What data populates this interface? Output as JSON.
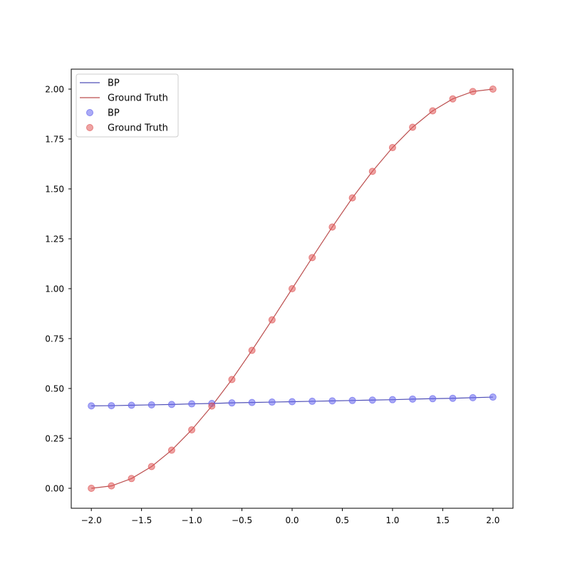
{
  "chart_data": {
    "type": "line",
    "title": "",
    "xlabel": "",
    "ylabel": "",
    "xlim": [
      -2.2,
      2.2
    ],
    "ylim": [
      -0.1,
      2.1
    ],
    "grid": false,
    "legend_position": "top-left",
    "x": [
      -2.0,
      -1.8,
      -1.6,
      -1.4,
      -1.2,
      -1.0,
      -0.8,
      -0.6,
      -0.4,
      -0.2,
      0.0,
      0.2,
      0.4,
      0.6,
      0.8,
      1.0,
      1.2,
      1.4,
      1.6,
      1.8,
      2.0
    ],
    "series": [
      {
        "name": "BP",
        "kind": "line+scatter",
        "line_color": "#3333aa",
        "marker_color": "#6666ee",
        "values": [
          0.413,
          0.414,
          0.416,
          0.418,
          0.42,
          0.423,
          0.425,
          0.428,
          0.43,
          0.432,
          0.434,
          0.436,
          0.438,
          0.44,
          0.442,
          0.444,
          0.447,
          0.449,
          0.451,
          0.454,
          0.457
        ]
      },
      {
        "name": "Ground Truth",
        "kind": "line+scatter",
        "line_color": "#b03030",
        "marker_color": "#e05a5a",
        "values": [
          0.0,
          0.012,
          0.049,
          0.109,
          0.191,
          0.293,
          0.412,
          0.545,
          0.691,
          0.844,
          1.0,
          1.156,
          1.309,
          1.455,
          1.588,
          1.707,
          1.809,
          1.891,
          1.951,
          1.988,
          2.0
        ]
      }
    ],
    "xticks": [
      -2.0,
      -1.5,
      -1.0,
      -0.5,
      0.0,
      0.5,
      1.0,
      1.5,
      2.0
    ],
    "xtick_labels": [
      "−2.0",
      "−1.5",
      "−1.0",
      "−0.5",
      "0.0",
      "0.5",
      "1.0",
      "1.5",
      "2.0"
    ],
    "yticks": [
      0.0,
      0.25,
      0.5,
      0.75,
      1.0,
      1.25,
      1.5,
      1.75,
      2.0
    ],
    "ytick_labels": [
      "0.00",
      "0.25",
      "0.50",
      "0.75",
      "1.00",
      "1.25",
      "1.50",
      "1.75",
      "2.00"
    ],
    "legend": [
      {
        "label": "BP",
        "kind": "line",
        "color": "#3333aa"
      },
      {
        "label": "Ground Truth",
        "kind": "line",
        "color": "#b03030"
      },
      {
        "label": "BP",
        "kind": "marker",
        "color": "#6666ee"
      },
      {
        "label": "Ground Truth",
        "kind": "marker",
        "color": "#e05a5a"
      }
    ]
  }
}
